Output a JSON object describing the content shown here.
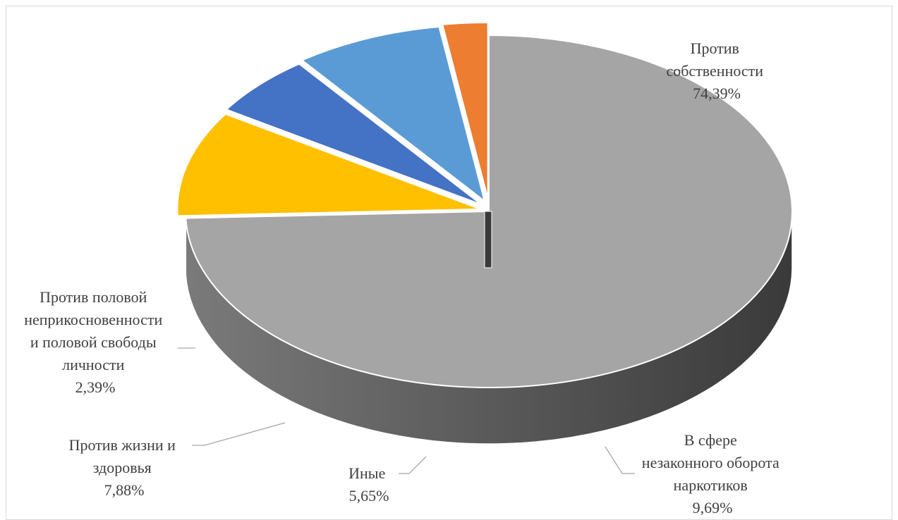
{
  "chart_data": {
    "type": "pie",
    "style": "3d-exploded",
    "legend": "none",
    "slices": [
      {
        "key": "property",
        "label_lines": [
          "Против",
          "собственности"
        ],
        "value_label": "74,39%",
        "value": 74.39,
        "color": "#a5a5a5",
        "side_color": "#4d4d4d"
      },
      {
        "key": "drugs",
        "label_lines": [
          "В сфере",
          "незаконного оборота",
          "наркотиков"
        ],
        "value_label": "9,69%",
        "value": 9.69,
        "color": "#ffc000",
        "side_color": "#7f6000"
      },
      {
        "key": "other",
        "label_lines": [
          "Иные"
        ],
        "value_label": "5,65%",
        "value": 5.65,
        "color": "#4472c4",
        "side_color": "#223a64"
      },
      {
        "key": "life",
        "label_lines": [
          "Против жизни и",
          "здоровья"
        ],
        "value_label": "7,88%",
        "value": 7.88,
        "color": "#5b9bd5",
        "side_color": "#3f6f9c"
      },
      {
        "key": "sexual",
        "label_lines": [
          "Против половой",
          "неприкосновенности",
          "и половой свободы",
          "личности"
        ],
        "value_label": "2,39%",
        "value": 2.39,
        "color": "#ed7d31",
        "side_color": "#b45a1f"
      }
    ]
  }
}
